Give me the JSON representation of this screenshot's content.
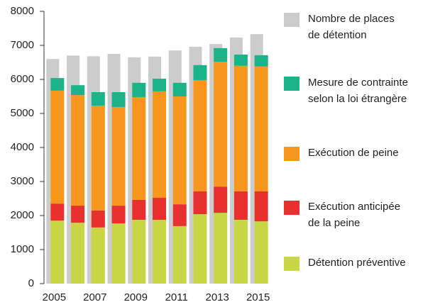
{
  "chart_data": {
    "type": "bar",
    "categories": [
      "2005",
      null,
      "2007",
      null,
      "2009",
      null,
      "2011",
      null,
      "2013",
      null,
      "2015"
    ],
    "series": [
      {
        "name": "Nombre de places\nde détention",
        "color": "#cccccc",
        "stack": false,
        "values": [
          6600,
          6700,
          6680,
          6750,
          6650,
          6670,
          6850,
          6960,
          7040,
          7230,
          7330
        ]
      },
      {
        "name": "Mesure de contrainte\nselon la loi étrangère",
        "color": "#1ab38a",
        "values": [
          370,
          290,
          395,
          435,
          420,
          370,
          400,
          440,
          400,
          330,
          330
        ]
      },
      {
        "name": "Exécution de peine",
        "color": "#f7971e",
        "values": [
          3320,
          3250,
          3080,
          2900,
          3020,
          3130,
          3170,
          3270,
          3670,
          3690,
          3670
        ]
      },
      {
        "name": "Exécution anticipée\nde la peine",
        "color": "#e8302e",
        "values": [
          500,
          500,
          500,
          520,
          585,
          645,
          640,
          670,
          770,
          835,
          880
        ]
      },
      {
        "name": "Détention préventive",
        "color": "#c8d645",
        "values": [
          1850,
          1790,
          1650,
          1770,
          1875,
          1875,
          1690,
          2040,
          2080,
          1875,
          1830
        ]
      }
    ],
    "ylim": [
      0,
      8000
    ],
    "yticks": [
      0,
      1000,
      2000,
      3000,
      4000,
      5000,
      6000,
      7000,
      8000
    ],
    "grid": false,
    "legend": "right"
  }
}
